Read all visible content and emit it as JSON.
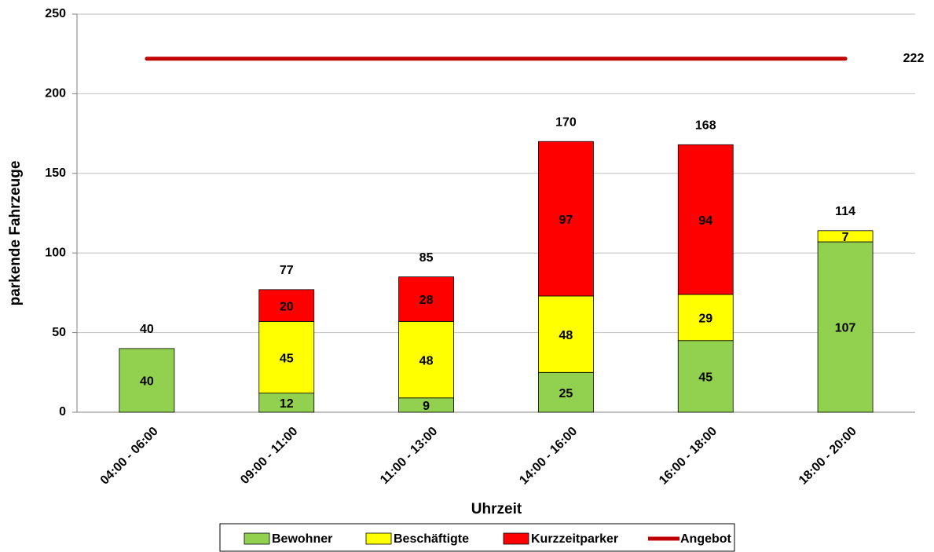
{
  "chart_data": {
    "type": "bar",
    "stacked": true,
    "x_label": "Uhrzeit",
    "y_label": "parkende Fahrzeuge",
    "categories": [
      "04:00 - 06:00",
      "09:00 - 11:00",
      "11:00 - 13:00",
      "14:00 - 16:00",
      "16:00 - 18:00",
      "18:00 - 20:00"
    ],
    "series": [
      {
        "name": "Bewohner",
        "color": "#92d050",
        "values": [
          40,
          12,
          9,
          25,
          45,
          107
        ]
      },
      {
        "name": "Beschäftigte",
        "color": "#ffff00",
        "values": [
          null,
          45,
          48,
          48,
          29,
          7
        ]
      },
      {
        "name": "Kurzzeitparker",
        "color": "#ff0000",
        "values": [
          null,
          20,
          28,
          97,
          94,
          null
        ]
      },
      {
        "name": "Angebot",
        "type": "line",
        "color": "#c00000",
        "values": [
          222,
          222,
          222,
          222,
          222,
          222
        ]
      }
    ],
    "totals": [
      40,
      77,
      85,
      170,
      168,
      114
    ],
    "ylim": [
      0,
      250
    ],
    "yticks": [
      0,
      50,
      100,
      150,
      200,
      250
    ],
    "grid": true,
    "legend": "bottom"
  }
}
